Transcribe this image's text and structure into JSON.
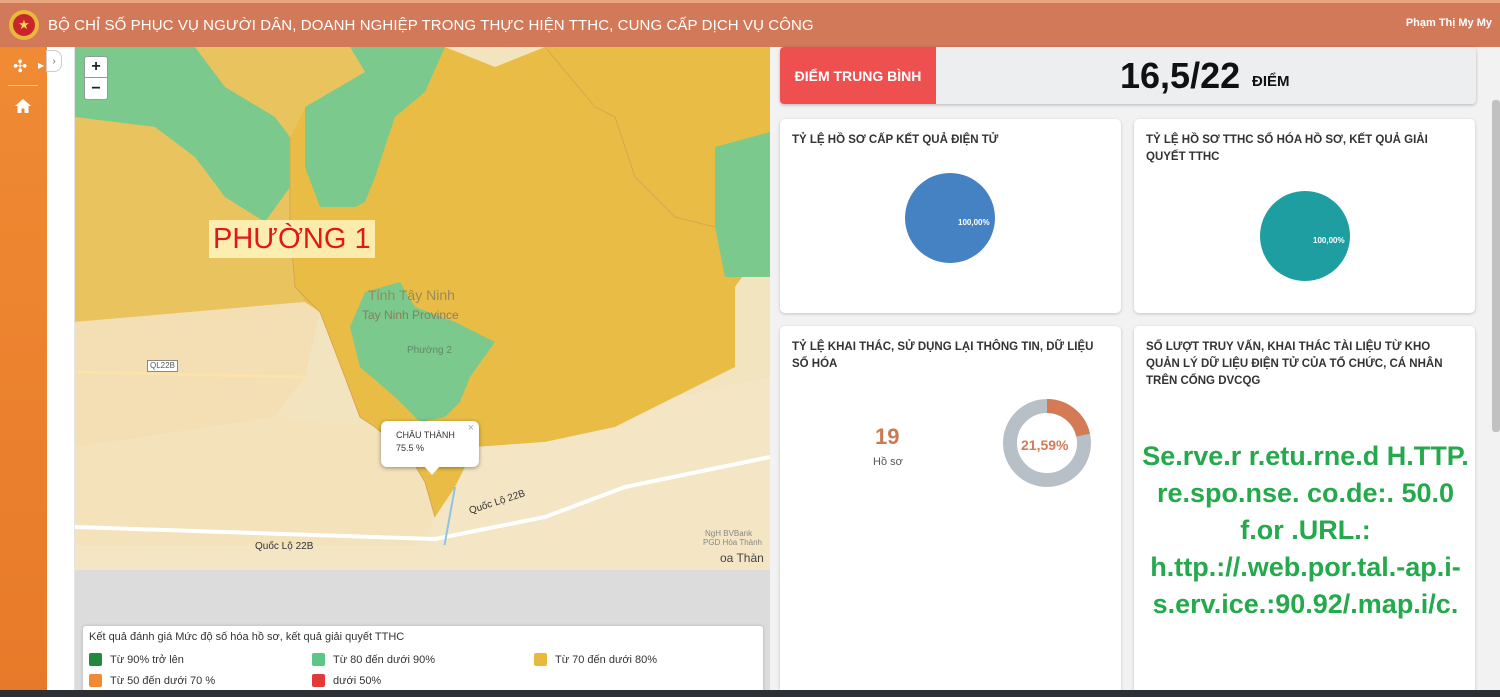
{
  "header": {
    "title": "BỘ CHỈ SỐ PHỤC VỤ NGƯỜI DÂN, DOANH NGHIỆP TRONG THỰC HIỆN TTHC, CUNG CẤP DỊCH VỤ CÔNG",
    "user": "Phạm Thị My My"
  },
  "map": {
    "zoom_in": "+",
    "zoom_out": "−",
    "ward_label": "PHƯỜNG 1",
    "popup": {
      "name": "CHÂU THÀNH",
      "value": "75.5 %",
      "close": "×"
    },
    "place_labels": [
      "Tỉnh Tây Ninh",
      "Tay Ninh Province",
      "Phường 2",
      "Quốc Lộ 22B",
      "Quốc Lộ 22B",
      "NgH BVBank",
      "PGD Hòa Thành",
      "oa Thàn",
      "QL22B"
    ]
  },
  "legend": {
    "title": "Kết quả đánh giá Mức độ số hóa hồ sơ, kết quả giải quyết TTHC",
    "items": [
      {
        "label": "Từ 90% trở lên",
        "color": "#1f8a3c"
      },
      {
        "label": "Từ 80 đến dưới 90%",
        "color": "#5bc687"
      },
      {
        "label": "Từ 70 đến dưới 80%",
        "color": "#e9b93e"
      },
      {
        "label": "Từ 50 đến dưới 70 %",
        "color": "#f08a33"
      },
      {
        "label": "dưới 50%",
        "color": "#e23a3a"
      }
    ]
  },
  "score": {
    "label": "ĐIỂM TRUNG BÌNH",
    "value": "16,5/22",
    "unit": "ĐIỂM"
  },
  "cards": [
    {
      "title": "TỶ LỆ HỒ SƠ CẤP KẾT QUẢ ĐIỆN TỬ",
      "pie_label": "100,00%",
      "color": "#4582c4"
    },
    {
      "title": "TỶ LỆ HỒ SƠ TTHC SỐ HÓA HỒ SƠ, KẾT QUẢ GIẢI QUYẾT TTHC",
      "pie_label": "100,00%",
      "color": "#1e9ea0"
    },
    {
      "title": "TỶ LỆ KHAI THÁC, SỬ DỤNG LẠI THÔNG TIN, DỮ LIỆU SỐ HÓA",
      "count": "19",
      "count_unit": "Hồ sơ",
      "donut_label": "21,59%",
      "donut_value": 21.59
    },
    {
      "title": "SỐ LƯỢT TRUY VẤN, KHAI THÁC TÀI LIỆU TỪ KHO QUẢN LÝ DỮ LIỆU ĐIỆN TỬ CỦA TỔ CHỨC, CÁ NHÂN TRÊN CỔNG DVCQG",
      "error": "Se.rve.r r.etu.rne.d H.TTP. re.spo.nse. co.de:. 50.0 f.or .URL.: h.ttp.://.web.por.tal.-ap.i-s.erv.ice.:90.92/.map.i/c."
    }
  ]
}
